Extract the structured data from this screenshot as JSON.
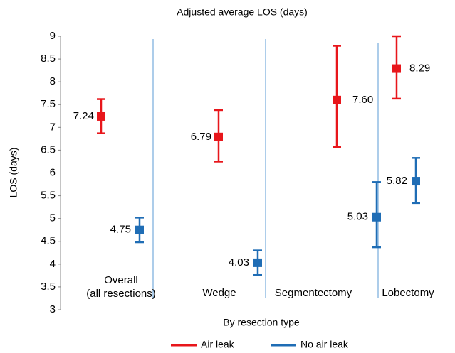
{
  "chart_data": {
    "type": "errorbar",
    "title": "Adjusted average LOS (days)",
    "ylabel": "LOS (days)",
    "xlabel": "By resection type",
    "categories": [
      [
        "Overall",
        "(all resections)"
      ],
      [
        "Wedge"
      ],
      [
        "Segmentectomy"
      ],
      [
        "Lobectomy"
      ]
    ],
    "ylim": [
      3,
      9
    ],
    "yticks": [
      3,
      3.5,
      4,
      4.5,
      5,
      5.5,
      6,
      6.5,
      7,
      7.5,
      8,
      8.5,
      9
    ],
    "series": [
      {
        "name": "Air leak",
        "color": "#e8161b",
        "values": [
          7.24,
          6.79,
          7.6,
          8.29
        ],
        "value_labels": [
          "7.24",
          "6.79",
          "7.60",
          "8.29"
        ],
        "lower": [
          6.87,
          6.25,
          6.57,
          7.63
        ],
        "upper": [
          7.62,
          7.38,
          8.79,
          9.0
        ]
      },
      {
        "name": "No air leak",
        "color": "#1f6db5",
        "values": [
          4.75,
          4.03,
          5.03,
          5.82
        ],
        "value_labels": [
          "4.75",
          "4.03",
          "5.03",
          "5.82"
        ],
        "lower": [
          4.48,
          3.76,
          4.37,
          5.34
        ],
        "upper": [
          5.02,
          4.3,
          5.8,
          6.33
        ]
      }
    ]
  }
}
